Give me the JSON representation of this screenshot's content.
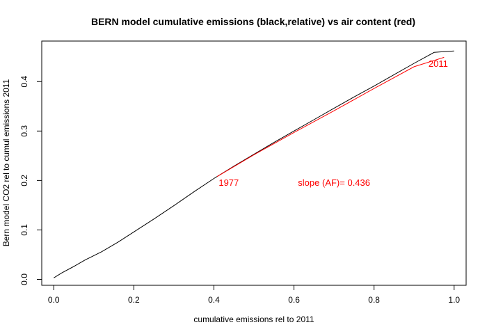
{
  "chart_data": {
    "type": "line",
    "title": "BERN model cumulative emissions (black,relative) vs air content (red)",
    "xlabel": "cumulative emissions rel to 2011",
    "ylabel": "Bern model CO2 rel to cumul emissions 2011",
    "xlim": [
      -0.03,
      1.03
    ],
    "ylim": [
      -0.012,
      0.482
    ],
    "xticks": [
      0.0,
      0.2,
      0.4,
      0.6,
      0.8,
      1.0
    ],
    "xtick_labels": [
      "0.0",
      "0.2",
      "0.4",
      "0.6",
      "0.8",
      "1.0"
    ],
    "yticks": [
      0.0,
      0.1,
      0.2,
      0.3,
      0.4
    ],
    "ytick_labels": [
      "0.0",
      "0.1",
      "0.2",
      "0.3",
      "0.4"
    ],
    "grid": false,
    "series": [
      {
        "color": "#000000",
        "x": [
          0.0,
          0.02,
          0.05,
          0.08,
          0.12,
          0.16,
          0.2,
          0.25,
          0.3,
          0.35,
          0.4,
          0.45,
          0.5,
          0.55,
          0.6,
          0.65,
          0.7,
          0.75,
          0.8,
          0.85,
          0.9,
          0.95,
          1.0
        ],
        "y": [
          0.003,
          0.013,
          0.026,
          0.04,
          0.056,
          0.075,
          0.096,
          0.122,
          0.149,
          0.177,
          0.204,
          0.229,
          0.253,
          0.277,
          0.3,
          0.323,
          0.346,
          0.369,
          0.391,
          0.414,
          0.437,
          0.459,
          0.462
        ]
      },
      {
        "color": "#ff0000",
        "x": [
          0.408,
          0.5,
          0.6,
          0.7,
          0.8,
          0.9,
          0.975
        ],
        "y": [
          0.208,
          0.252,
          0.297,
          0.341,
          0.386,
          0.43,
          0.449
        ]
      }
    ],
    "annotations": [
      {
        "text": "1977",
        "x": 0.412,
        "y": 0.196,
        "color": "#ff0000"
      },
      {
        "text": "slope (AF)= 0.436",
        "x": 0.61,
        "y": 0.196,
        "color": "#ff0000"
      },
      {
        "text": "2011",
        "x": 0.936,
        "y": 0.437,
        "color": "#ff0000"
      }
    ]
  }
}
